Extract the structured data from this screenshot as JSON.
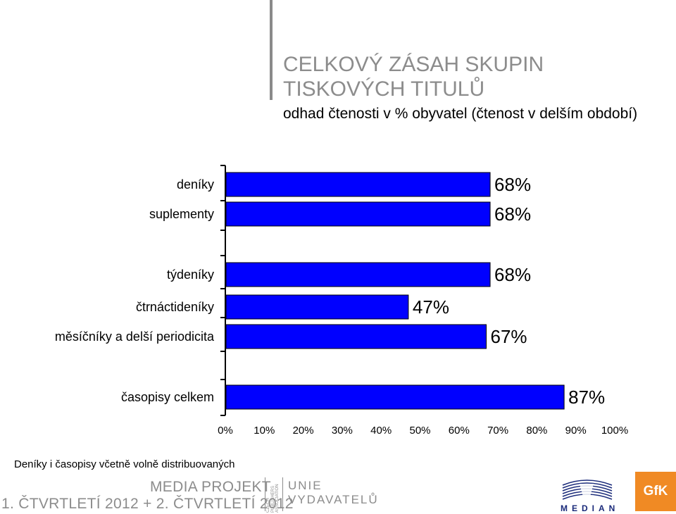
{
  "header": {
    "title_line1": "CELKOVÝ ZÁSAH SKUPIN",
    "title_line2": "TISKOVÝCH TITULŮ",
    "subtitle": "odhad čtenosti v % obyvatel (čtenost v delším období)"
  },
  "chart_data": {
    "type": "bar",
    "orientation": "horizontal",
    "categories": [
      "deníky",
      "suplementy",
      "týdeníky",
      "čtrnáctideníky",
      "měsíčníky a delší periodicita",
      "časopisy celkem"
    ],
    "values": [
      68,
      68,
      68,
      47,
      67,
      87
    ],
    "data_labels": [
      "68%",
      "68%",
      "68%",
      "47%",
      "67%",
      "87%"
    ],
    "xlim": [
      0,
      100
    ],
    "x_ticks": [
      "0%",
      "10%",
      "20%",
      "30%",
      "40%",
      "50%",
      "60%",
      "70%",
      "80%",
      "90%",
      "100%"
    ],
    "bar_color": "#0000ff",
    "grid": false,
    "legend": "none"
  },
  "footer": {
    "note": "Deníky i časopisy včetně volně distribuovaných",
    "media_projekt": "MEDIA PROJEKT",
    "period": "1. ČTVRTLETÍ 2012 + 2. ČTVRTLETÍ 2012",
    "cpa_line1": "CZECH",
    "cpa_line2": "PUBLISHERS",
    "cpa_line3": "ASSOCIATION",
    "unie_line1": "UNIE",
    "unie_line2": "VYDAVATELŮ",
    "median": "MEDIAN",
    "gfk": "GfK",
    "gfk_color": "#f08a24"
  }
}
